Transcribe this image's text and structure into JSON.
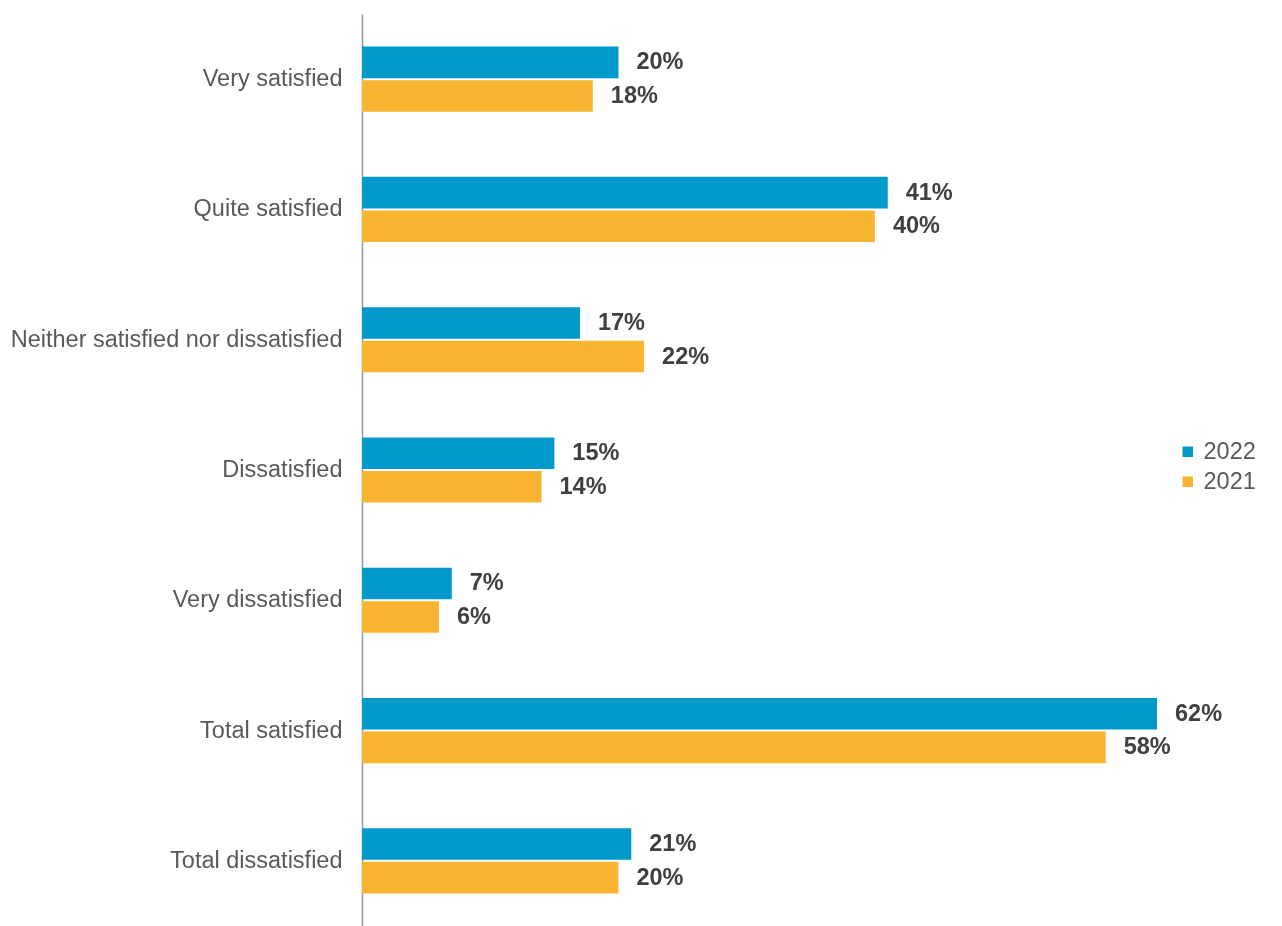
{
  "chart_data": {
    "type": "bar",
    "orientation": "horizontal",
    "legend": "right",
    "categories": [
      "Very satisfied",
      "Quite satisfied",
      "Neither satisfied nor dissatisfied",
      "Dissatisfied",
      "Very dissatisfied",
      "Total satisfied",
      "Total dissatisfied"
    ],
    "series": [
      {
        "name": "2022",
        "color": "#0099cc",
        "values": [
          20,
          41,
          17,
          15,
          7,
          62,
          21
        ],
        "value_labels": [
          "20%",
          "41%",
          "17%",
          "15%",
          "7%",
          "62%",
          "21%"
        ]
      },
      {
        "name": "2021",
        "color": "#f9b432",
        "values": [
          18,
          40,
          22,
          14,
          6,
          58,
          20
        ],
        "value_labels": [
          "18%",
          "40%",
          "22%",
          "14%",
          "6%",
          "58%",
          "20%"
        ]
      }
    ]
  }
}
